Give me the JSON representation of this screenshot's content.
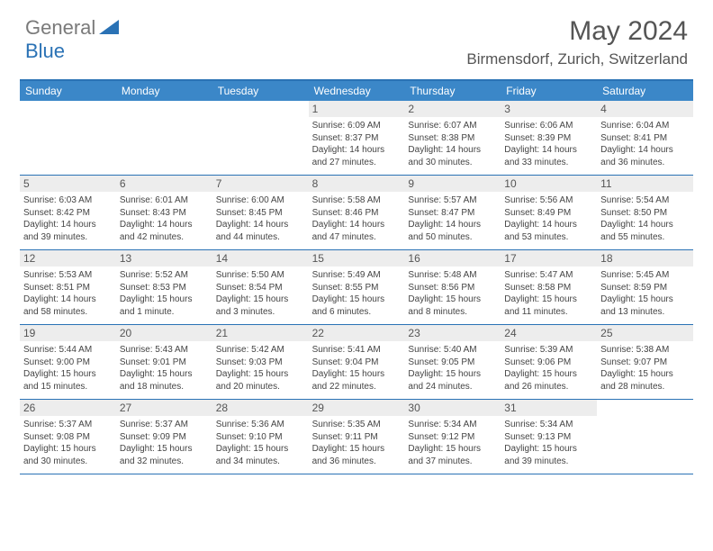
{
  "logo": {
    "gray": "General",
    "blue": "Blue"
  },
  "title": "May 2024",
  "location": "Birmensdorf, Zurich, Switzerland",
  "colors": {
    "header_blue": "#3b87c8",
    "border_blue": "#2a72b5",
    "daynum_bg": "#ededed",
    "text_gray": "#555555",
    "body_text": "#444444",
    "logo_gray": "#7a7a7a"
  },
  "weekdays": [
    "Sunday",
    "Monday",
    "Tuesday",
    "Wednesday",
    "Thursday",
    "Friday",
    "Saturday"
  ],
  "weeks": [
    [
      null,
      null,
      null,
      {
        "n": "1",
        "sr": "Sunrise: 6:09 AM",
        "ss": "Sunset: 8:37 PM",
        "d1": "Daylight: 14 hours",
        "d2": "and 27 minutes."
      },
      {
        "n": "2",
        "sr": "Sunrise: 6:07 AM",
        "ss": "Sunset: 8:38 PM",
        "d1": "Daylight: 14 hours",
        "d2": "and 30 minutes."
      },
      {
        "n": "3",
        "sr": "Sunrise: 6:06 AM",
        "ss": "Sunset: 8:39 PM",
        "d1": "Daylight: 14 hours",
        "d2": "and 33 minutes."
      },
      {
        "n": "4",
        "sr": "Sunrise: 6:04 AM",
        "ss": "Sunset: 8:41 PM",
        "d1": "Daylight: 14 hours",
        "d2": "and 36 minutes."
      }
    ],
    [
      {
        "n": "5",
        "sr": "Sunrise: 6:03 AM",
        "ss": "Sunset: 8:42 PM",
        "d1": "Daylight: 14 hours",
        "d2": "and 39 minutes."
      },
      {
        "n": "6",
        "sr": "Sunrise: 6:01 AM",
        "ss": "Sunset: 8:43 PM",
        "d1": "Daylight: 14 hours",
        "d2": "and 42 minutes."
      },
      {
        "n": "7",
        "sr": "Sunrise: 6:00 AM",
        "ss": "Sunset: 8:45 PM",
        "d1": "Daylight: 14 hours",
        "d2": "and 44 minutes."
      },
      {
        "n": "8",
        "sr": "Sunrise: 5:58 AM",
        "ss": "Sunset: 8:46 PM",
        "d1": "Daylight: 14 hours",
        "d2": "and 47 minutes."
      },
      {
        "n": "9",
        "sr": "Sunrise: 5:57 AM",
        "ss": "Sunset: 8:47 PM",
        "d1": "Daylight: 14 hours",
        "d2": "and 50 minutes."
      },
      {
        "n": "10",
        "sr": "Sunrise: 5:56 AM",
        "ss": "Sunset: 8:49 PM",
        "d1": "Daylight: 14 hours",
        "d2": "and 53 minutes."
      },
      {
        "n": "11",
        "sr": "Sunrise: 5:54 AM",
        "ss": "Sunset: 8:50 PM",
        "d1": "Daylight: 14 hours",
        "d2": "and 55 minutes."
      }
    ],
    [
      {
        "n": "12",
        "sr": "Sunrise: 5:53 AM",
        "ss": "Sunset: 8:51 PM",
        "d1": "Daylight: 14 hours",
        "d2": "and 58 minutes."
      },
      {
        "n": "13",
        "sr": "Sunrise: 5:52 AM",
        "ss": "Sunset: 8:53 PM",
        "d1": "Daylight: 15 hours",
        "d2": "and 1 minute."
      },
      {
        "n": "14",
        "sr": "Sunrise: 5:50 AM",
        "ss": "Sunset: 8:54 PM",
        "d1": "Daylight: 15 hours",
        "d2": "and 3 minutes."
      },
      {
        "n": "15",
        "sr": "Sunrise: 5:49 AM",
        "ss": "Sunset: 8:55 PM",
        "d1": "Daylight: 15 hours",
        "d2": "and 6 minutes."
      },
      {
        "n": "16",
        "sr": "Sunrise: 5:48 AM",
        "ss": "Sunset: 8:56 PM",
        "d1": "Daylight: 15 hours",
        "d2": "and 8 minutes."
      },
      {
        "n": "17",
        "sr": "Sunrise: 5:47 AM",
        "ss": "Sunset: 8:58 PM",
        "d1": "Daylight: 15 hours",
        "d2": "and 11 minutes."
      },
      {
        "n": "18",
        "sr": "Sunrise: 5:45 AM",
        "ss": "Sunset: 8:59 PM",
        "d1": "Daylight: 15 hours",
        "d2": "and 13 minutes."
      }
    ],
    [
      {
        "n": "19",
        "sr": "Sunrise: 5:44 AM",
        "ss": "Sunset: 9:00 PM",
        "d1": "Daylight: 15 hours",
        "d2": "and 15 minutes."
      },
      {
        "n": "20",
        "sr": "Sunrise: 5:43 AM",
        "ss": "Sunset: 9:01 PM",
        "d1": "Daylight: 15 hours",
        "d2": "and 18 minutes."
      },
      {
        "n": "21",
        "sr": "Sunrise: 5:42 AM",
        "ss": "Sunset: 9:03 PM",
        "d1": "Daylight: 15 hours",
        "d2": "and 20 minutes."
      },
      {
        "n": "22",
        "sr": "Sunrise: 5:41 AM",
        "ss": "Sunset: 9:04 PM",
        "d1": "Daylight: 15 hours",
        "d2": "and 22 minutes."
      },
      {
        "n": "23",
        "sr": "Sunrise: 5:40 AM",
        "ss": "Sunset: 9:05 PM",
        "d1": "Daylight: 15 hours",
        "d2": "and 24 minutes."
      },
      {
        "n": "24",
        "sr": "Sunrise: 5:39 AM",
        "ss": "Sunset: 9:06 PM",
        "d1": "Daylight: 15 hours",
        "d2": "and 26 minutes."
      },
      {
        "n": "25",
        "sr": "Sunrise: 5:38 AM",
        "ss": "Sunset: 9:07 PM",
        "d1": "Daylight: 15 hours",
        "d2": "and 28 minutes."
      }
    ],
    [
      {
        "n": "26",
        "sr": "Sunrise: 5:37 AM",
        "ss": "Sunset: 9:08 PM",
        "d1": "Daylight: 15 hours",
        "d2": "and 30 minutes."
      },
      {
        "n": "27",
        "sr": "Sunrise: 5:37 AM",
        "ss": "Sunset: 9:09 PM",
        "d1": "Daylight: 15 hours",
        "d2": "and 32 minutes."
      },
      {
        "n": "28",
        "sr": "Sunrise: 5:36 AM",
        "ss": "Sunset: 9:10 PM",
        "d1": "Daylight: 15 hours",
        "d2": "and 34 minutes."
      },
      {
        "n": "29",
        "sr": "Sunrise: 5:35 AM",
        "ss": "Sunset: 9:11 PM",
        "d1": "Daylight: 15 hours",
        "d2": "and 36 minutes."
      },
      {
        "n": "30",
        "sr": "Sunrise: 5:34 AM",
        "ss": "Sunset: 9:12 PM",
        "d1": "Daylight: 15 hours",
        "d2": "and 37 minutes."
      },
      {
        "n": "31",
        "sr": "Sunrise: 5:34 AM",
        "ss": "Sunset: 9:13 PM",
        "d1": "Daylight: 15 hours",
        "d2": "and 39 minutes."
      },
      null
    ]
  ]
}
